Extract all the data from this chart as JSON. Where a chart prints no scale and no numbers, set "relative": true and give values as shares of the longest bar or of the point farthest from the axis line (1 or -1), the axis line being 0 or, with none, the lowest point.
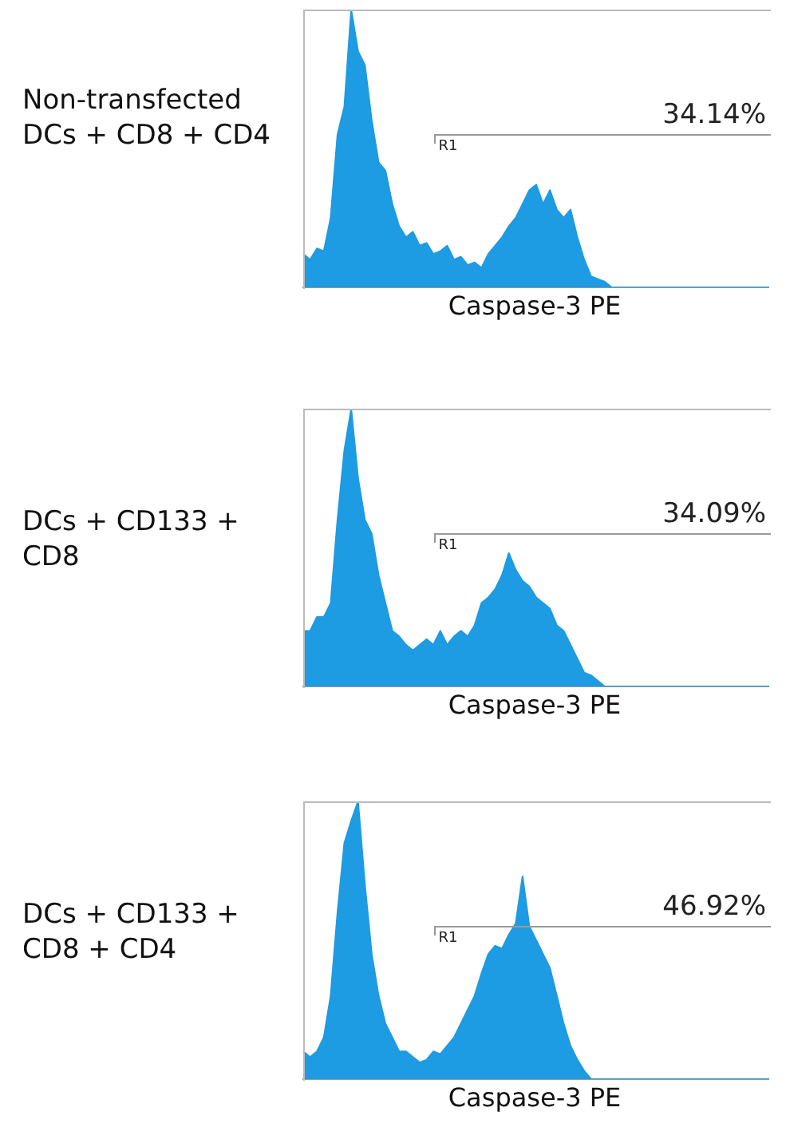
{
  "chart_data": [
    {
      "type": "area",
      "title": "Non-transfected DCs + CD8 + CD4",
      "xlabel": "Caspase-3 PE",
      "relative": true,
      "tick_labels": false,
      "legend": false,
      "grid": false,
      "annotations": [
        "R1",
        "34.14%"
      ],
      "categories": [
        null,
        null,
        null,
        null,
        null,
        null,
        null,
        null,
        null,
        null,
        null,
        null,
        null,
        null,
        null,
        null,
        null,
        null,
        null,
        null,
        null,
        null,
        null,
        null,
        null,
        null,
        null,
        null,
        null,
        null,
        null,
        null,
        null,
        null,
        null,
        null,
        null,
        null,
        null,
        null,
        null,
        null,
        null,
        null,
        null,
        null,
        null,
        null,
        null,
        null,
        null,
        null,
        null,
        null,
        null,
        null,
        null,
        null,
        null,
        null,
        null,
        null,
        null,
        null,
        null,
        null,
        null,
        null,
        null
      ],
      "series": [
        {
          "color": "#1d9be3",
          "values": [
            0.12,
            0.1,
            0.14,
            0.13,
            0.25,
            0.55,
            0.65,
            1.0,
            0.85,
            0.8,
            0.6,
            0.45,
            0.42,
            0.3,
            0.22,
            0.18,
            0.2,
            0.15,
            0.16,
            0.12,
            0.13,
            0.15,
            0.1,
            0.11,
            0.08,
            0.09,
            0.07,
            0.12,
            0.15,
            0.18,
            0.22,
            0.25,
            0.3,
            0.35,
            0.37,
            0.3,
            0.35,
            0.28,
            0.25,
            0.28,
            0.18,
            0.1,
            0.04,
            0.03,
            0.02,
            0,
            0,
            0,
            0,
            0,
            0,
            0,
            0,
            0,
            0,
            0,
            0,
            0,
            0,
            0,
            0,
            0,
            0,
            0,
            0,
            0,
            0,
            0,
            0
          ]
        }
      ]
    },
    {
      "type": "area",
      "title": "DCs + CD133 + CD8",
      "xlabel": "Caspase-3 PE",
      "relative": true,
      "tick_labels": false,
      "legend": false,
      "grid": false,
      "annotations": [
        "R1",
        "34.09%"
      ],
      "categories": [
        null,
        null,
        null,
        null,
        null,
        null,
        null,
        null,
        null,
        null,
        null,
        null,
        null,
        null,
        null,
        null,
        null,
        null,
        null,
        null,
        null,
        null,
        null,
        null,
        null,
        null,
        null,
        null,
        null,
        null,
        null,
        null,
        null,
        null,
        null,
        null,
        null,
        null,
        null,
        null,
        null,
        null,
        null,
        null,
        null,
        null,
        null,
        null,
        null,
        null,
        null,
        null,
        null,
        null,
        null,
        null,
        null,
        null,
        null,
        null,
        null,
        null,
        null,
        null,
        null,
        null,
        null,
        null,
        null
      ],
      "series": [
        {
          "color": "#1d9be3",
          "values": [
            0.2,
            0.2,
            0.25,
            0.25,
            0.3,
            0.6,
            0.85,
            1.0,
            0.75,
            0.6,
            0.55,
            0.4,
            0.3,
            0.2,
            0.18,
            0.15,
            0.13,
            0.15,
            0.17,
            0.15,
            0.2,
            0.15,
            0.18,
            0.2,
            0.18,
            0.22,
            0.3,
            0.32,
            0.35,
            0.4,
            0.48,
            0.42,
            0.38,
            0.36,
            0.32,
            0.3,
            0.28,
            0.22,
            0.2,
            0.15,
            0.1,
            0.05,
            0.04,
            0.02,
            0,
            0,
            0,
            0,
            0,
            0,
            0,
            0,
            0,
            0,
            0,
            0,
            0,
            0,
            0,
            0,
            0,
            0,
            0,
            0,
            0,
            0,
            0,
            0,
            0
          ]
        }
      ]
    },
    {
      "type": "area",
      "title": "DCs + CD133 + CD8 + CD4",
      "xlabel": "Caspase-3 PE",
      "relative": true,
      "tick_labels": false,
      "legend": false,
      "grid": false,
      "annotations": [
        "R1",
        "46.92%"
      ],
      "categories": [
        null,
        null,
        null,
        null,
        null,
        null,
        null,
        null,
        null,
        null,
        null,
        null,
        null,
        null,
        null,
        null,
        null,
        null,
        null,
        null,
        null,
        null,
        null,
        null,
        null,
        null,
        null,
        null,
        null,
        null,
        null,
        null,
        null,
        null,
        null,
        null,
        null,
        null,
        null,
        null,
        null,
        null,
        null,
        null,
        null,
        null,
        null,
        null,
        null,
        null,
        null,
        null,
        null,
        null,
        null,
        null,
        null,
        null,
        null,
        null,
        null,
        null,
        null,
        null,
        null,
        null,
        null,
        null,
        null
      ],
      "series": [
        {
          "color": "#1d9be3",
          "values": [
            0.1,
            0.08,
            0.1,
            0.15,
            0.3,
            0.6,
            0.85,
            0.93,
            1.0,
            0.7,
            0.45,
            0.3,
            0.2,
            0.15,
            0.1,
            0.1,
            0.08,
            0.06,
            0.07,
            0.1,
            0.09,
            0.12,
            0.15,
            0.2,
            0.25,
            0.3,
            0.38,
            0.45,
            0.48,
            0.47,
            0.52,
            0.56,
            0.73,
            0.55,
            0.5,
            0.45,
            0.4,
            0.3,
            0.2,
            0.12,
            0.07,
            0.03,
            0,
            0,
            0,
            0,
            0,
            0,
            0,
            0,
            0,
            0,
            0,
            0,
            0,
            0,
            0,
            0,
            0,
            0,
            0,
            0,
            0,
            0,
            0,
            0,
            0,
            0,
            0
          ]
        }
      ]
    }
  ]
}
